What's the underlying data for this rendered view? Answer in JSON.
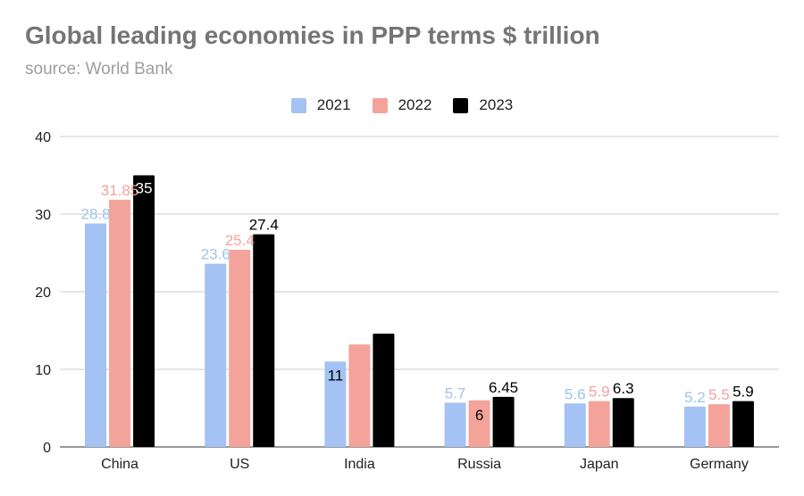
{
  "chart_data": {
    "type": "bar",
    "title": "Global leading economies in PPP terms $ trillion",
    "subtitle": "source: World Bank",
    "categories": [
      "China",
      "US",
      "India",
      "Russia",
      "Japan",
      "Germany"
    ],
    "series": [
      {
        "name": "2021",
        "color": "#a4c2f4",
        "label_color": "#9fc5e8",
        "values": [
          28.8,
          23.6,
          11,
          5.7,
          5.6,
          5.2
        ],
        "labels": [
          "28.8",
          "23.6",
          "11",
          "5.7",
          "5.6",
          "5.2"
        ]
      },
      {
        "name": "2022",
        "color": "#f4a39b",
        "label_color": "#f4a39b",
        "values": [
          31.85,
          25.4,
          13.2,
          6,
          5.9,
          5.5
        ],
        "labels": [
          "31.85",
          "25.4",
          "",
          "6",
          "5.9",
          "5.5"
        ]
      },
      {
        "name": "2023",
        "color": "#000000",
        "label_color": "#000000",
        "values": [
          35,
          27.4,
          14.6,
          6.45,
          6.3,
          5.9
        ],
        "labels": [
          "35",
          "27.4",
          "",
          "6.45",
          "6.3",
          "5.9"
        ]
      }
    ],
    "yticks": [
      0,
      10,
      20,
      30,
      40
    ],
    "ylim": [
      0,
      40
    ],
    "legend_position": "top-center",
    "grid": true
  }
}
